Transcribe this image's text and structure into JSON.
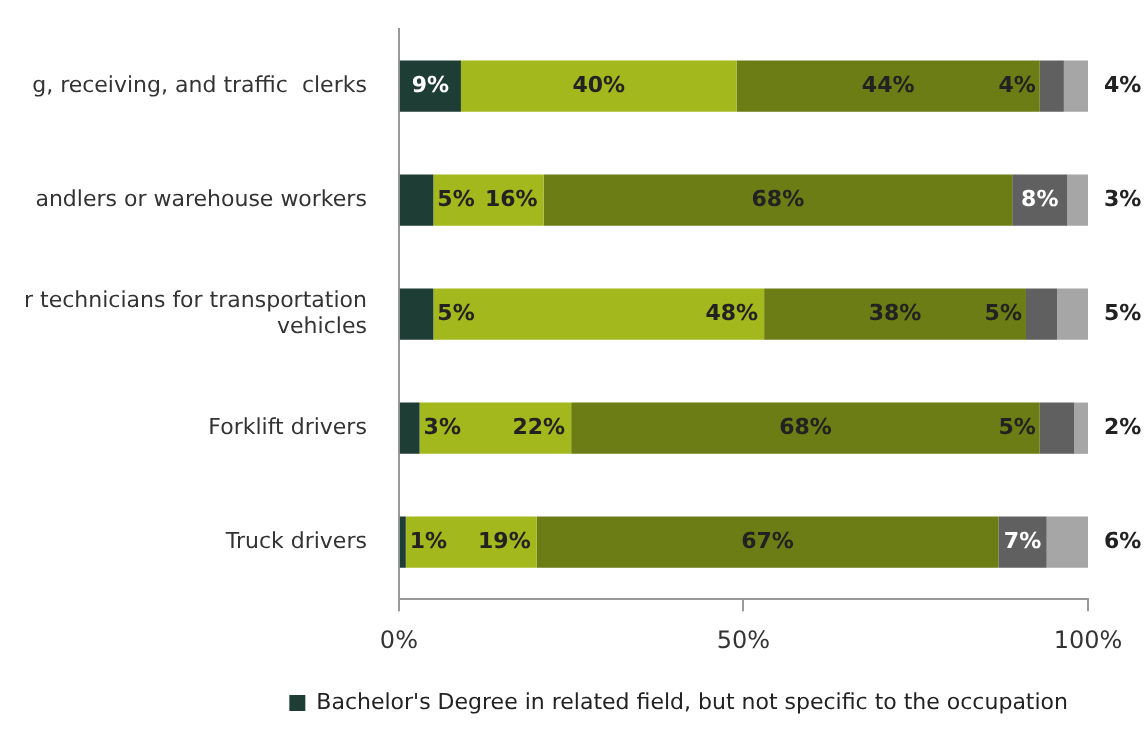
{
  "chart_data": {
    "type": "bar",
    "orientation": "horizontal",
    "stacked": true,
    "categories": [
      "g, receiving, and traffic  clerks",
      "andlers or warehouse workers",
      "r technicians for transportation vehicles",
      "Forklift drivers",
      "Truck drivers"
    ],
    "series": [
      {
        "name": "Bachelor's Degree in related field, but not specific to the occupation",
        "color": "#1e3d35",
        "values": [
          9,
          5,
          5,
          3,
          1
        ],
        "value_labels": [
          "9%",
          "5%",
          "5%",
          "3%",
          "1%"
        ]
      },
      {
        "color": "#a3b81c",
        "values": [
          40,
          16,
          48,
          22,
          19
        ],
        "value_labels": [
          "40%",
          "16%",
          "48%",
          "22%",
          "19%"
        ]
      },
      {
        "color": "#6b7d14",
        "values": [
          44,
          68,
          38,
          68,
          67
        ],
        "value_labels": [
          "44%",
          "68%",
          "38%",
          "68%",
          "67%"
        ]
      },
      {
        "color": "#606060",
        "values": [
          3.5,
          8,
          4.5,
          5,
          7
        ],
        "value_labels": [
          "4%",
          "8%",
          "5%",
          "5%",
          "7%"
        ]
      },
      {
        "color": "#a6a6a6",
        "values": [
          3.5,
          3,
          4.5,
          2,
          6
        ],
        "value_labels": [
          "4%",
          "3%",
          "5%",
          "2%",
          "6%"
        ]
      }
    ],
    "xlim": [
      0,
      100
    ],
    "xticks": [
      {
        "value": 0,
        "label": "0%"
      },
      {
        "value": 50,
        "label": "50%"
      },
      {
        "value": 100,
        "label": "100%"
      }
    ],
    "grid": false,
    "legend": "bottom"
  }
}
